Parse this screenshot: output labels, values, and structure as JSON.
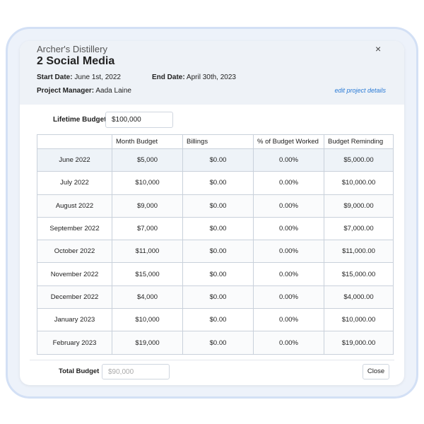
{
  "header": {
    "company": "Archer's Distillery",
    "title": "2 Social Media",
    "start_date_label": "Start Date:",
    "start_date": "June 1st, 2022",
    "end_date_label": "End Date:",
    "end_date": "April 30th, 2023",
    "manager_label": "Project Manager:",
    "manager": "Aada Laine",
    "edit_link": "edit project details",
    "close_icon": "×"
  },
  "lifetime_budget": {
    "label": "Lifetime Budget",
    "value": "$100,000"
  },
  "table": {
    "columns": [
      "Month Budget",
      "Billings",
      "% of Budget Worked",
      "Budget Reminding"
    ],
    "rows": [
      [
        "June 2022",
        "$5,000",
        "$0.00",
        "0.00%",
        "$5,000.00"
      ],
      [
        "July 2022",
        "$10,000",
        "$0.00",
        "0.00%",
        "$10,000.00"
      ],
      [
        "August 2022",
        "$9,000",
        "$0.00",
        "0.00%",
        "$9,000.00"
      ],
      [
        "September 2022",
        "$7,000",
        "$0.00",
        "0.00%",
        "$7,000.00"
      ],
      [
        "October 2022",
        "$11,000",
        "$0.00",
        "0.00%",
        "$11,000.00"
      ],
      [
        "November 2022",
        "$15,000",
        "$0.00",
        "0.00%",
        "$15,000.00"
      ],
      [
        "December 2022",
        "$4,000",
        "$0.00",
        "0.00%",
        "$4,000.00"
      ],
      [
        "January 2023",
        "$10,000",
        "$0.00",
        "0.00%",
        "$10,000.00"
      ],
      [
        "February 2023",
        "$19,000",
        "$0.00",
        "0.00%",
        "$19,000.00"
      ]
    ]
  },
  "footer": {
    "total_label": "Total Budget",
    "total_placeholder": "$90,000",
    "close_button": "Close"
  }
}
